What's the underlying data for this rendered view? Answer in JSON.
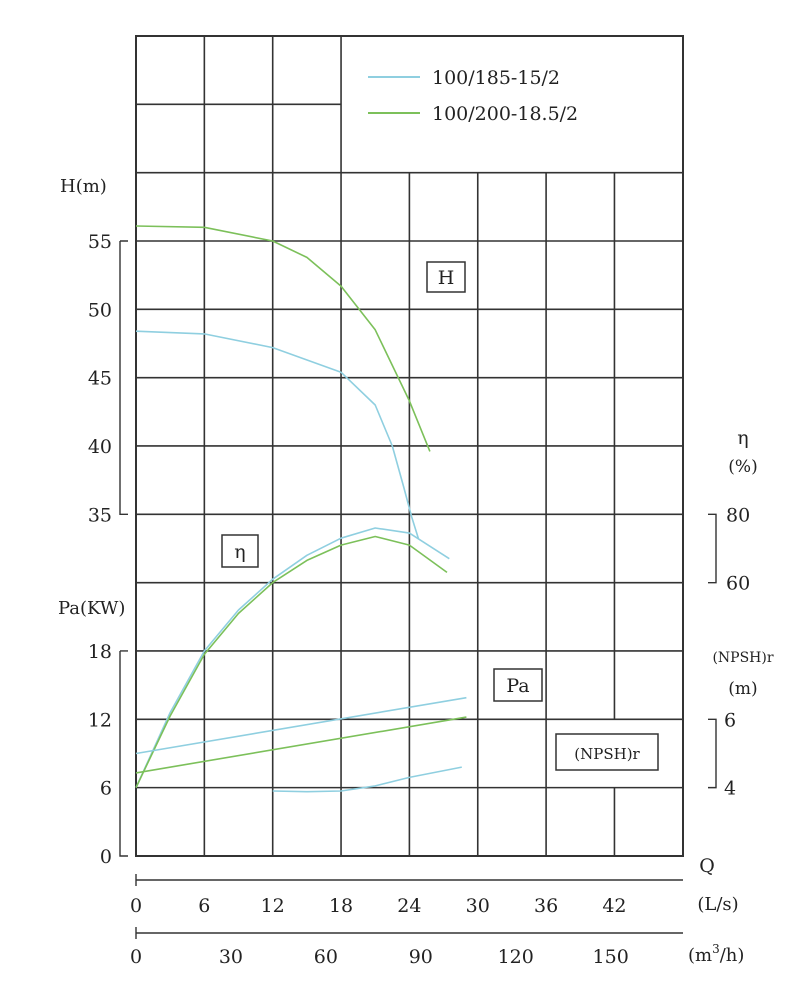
{
  "chart_data": {
    "type": "line",
    "title": "",
    "legend": {
      "placement": "top-right",
      "entries": [
        {
          "name": "100/185-15/2",
          "color": "#8fcfe0"
        },
        {
          "name": "100/200-18.5/2",
          "color": "#7cc05a"
        }
      ]
    },
    "x_axes": [
      {
        "label": "Q",
        "unit": "(L/s)",
        "ticks": [
          "0",
          "6",
          "12",
          "18",
          "24",
          "30",
          "36",
          "42"
        ],
        "range": [
          0,
          48
        ]
      },
      {
        "unit": "(m³/h)",
        "unit_base": "(m",
        "unit_sup": "3",
        "unit_tail": "/h)",
        "ticks": [
          "0",
          "30",
          "60",
          "90",
          "120",
          "150"
        ],
        "range": [
          0,
          172.8
        ]
      }
    ],
    "y_axes": {
      "H": {
        "label": "H(m)",
        "ticks": [
          "55",
          "50",
          "45",
          "40",
          "35"
        ],
        "range": [
          35,
          55
        ]
      },
      "eta": {
        "label": "η",
        "unit": "(%)",
        "ticks": [
          "80",
          "60"
        ],
        "range": [
          60,
          80
        ]
      },
      "Pa": {
        "label": "Pa(KW)",
        "ticks": [
          "18",
          "12",
          "6",
          "0"
        ],
        "range": [
          0,
          18
        ]
      },
      "NPSH": {
        "label": "(NPSH)r",
        "unit": "(m)",
        "ticks": [
          "6",
          "4"
        ],
        "range": [
          4,
          6
        ]
      }
    },
    "curve_labels": [
      "H",
      "η",
      "Pa",
      "(NPSH)r"
    ],
    "grid": true,
    "series": [
      {
        "name": "100/185-15/2",
        "curve": "H",
        "x": [
          0,
          6,
          12,
          18,
          21,
          22.5,
          23.5,
          24.2,
          24.8
        ],
        "y": [
          48.4,
          48.2,
          47.2,
          45.4,
          43,
          40,
          37,
          34.8,
          33.2
        ]
      },
      {
        "name": "100/200-18.5/2",
        "curve": "H",
        "x": [
          0,
          6,
          12,
          15,
          18,
          21,
          24,
          25.8
        ],
        "y": [
          56.1,
          56,
          55,
          53.8,
          51.7,
          48.5,
          43.3,
          39.6
        ]
      },
      {
        "name": "100/185-15/2",
        "curve": "eta",
        "x": [
          0,
          3,
          6,
          9,
          12,
          15,
          18,
          21,
          24,
          27.5
        ],
        "y": [
          0,
          22,
          40,
          52,
          61,
          68,
          73,
          76,
          74.5,
          67
        ]
      },
      {
        "name": "100/200-18.5/2",
        "curve": "eta",
        "x": [
          0,
          3,
          6,
          9,
          12,
          15,
          18,
          21,
          24,
          27.3
        ],
        "y": [
          0,
          21,
          39,
          51,
          60,
          66.5,
          71,
          73.5,
          71,
          63
        ]
      },
      {
        "name": "100/185-15/2",
        "curve": "Pa",
        "x": [
          0,
          29
        ],
        "y": [
          9.0,
          13.9
        ]
      },
      {
        "name": "100/200-18.5/2",
        "curve": "Pa",
        "x": [
          0,
          29
        ],
        "y": [
          7.3,
          12.2
        ]
      },
      {
        "name": "100/185-15/2",
        "curve": "NPSH",
        "x": [
          12,
          15,
          18,
          21,
          24,
          28.6
        ],
        "y": [
          3.9,
          3.88,
          3.9,
          4.05,
          4.3,
          4.6
        ]
      }
    ]
  }
}
